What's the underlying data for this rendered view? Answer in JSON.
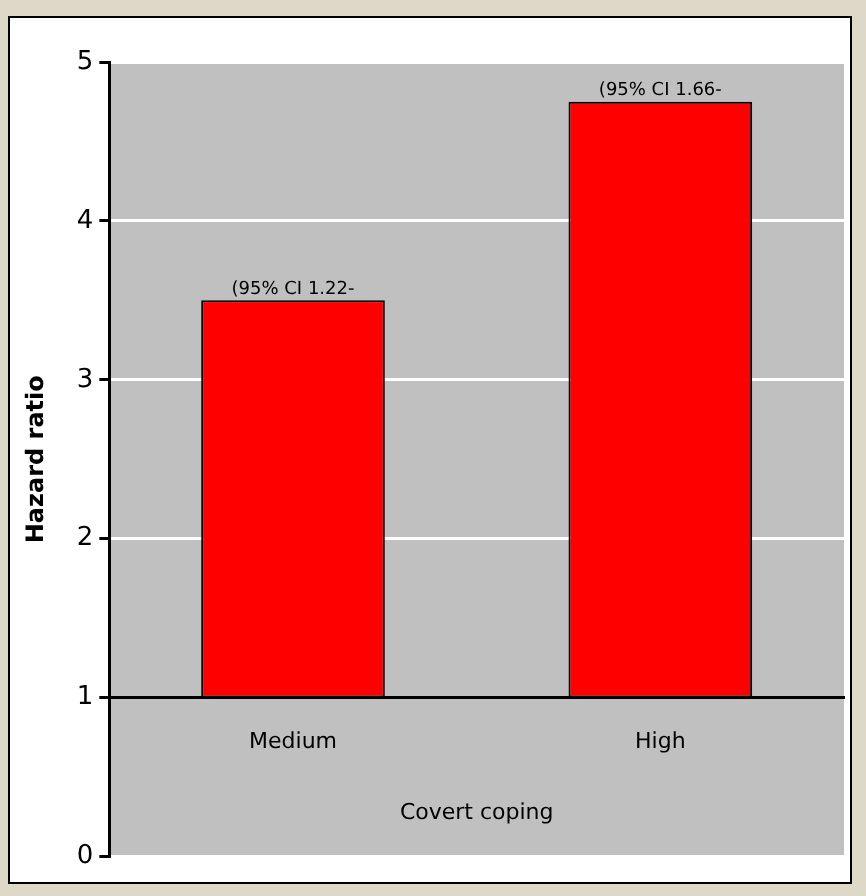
{
  "chart_data": {
    "type": "bar",
    "xlabel": "Covert coping",
    "ylabel": "Hazard ratio",
    "categories": [
      "Medium",
      "High"
    ],
    "base": [
      1,
      1
    ],
    "values": [
      2.5,
      3.75
    ],
    "color": "#ff0000",
    "ylim": [
      0,
      5
    ],
    "yticks": [
      0,
      1,
      2,
      3,
      4,
      5
    ],
    "grid": "y",
    "annotations": [
      {
        "text": "(95% CI 1.22-",
        "x": "Medium",
        "y": 3.5
      },
      {
        "text": "(95% CI 1.66-",
        "x": "High",
        "y": 4.75
      }
    ]
  }
}
